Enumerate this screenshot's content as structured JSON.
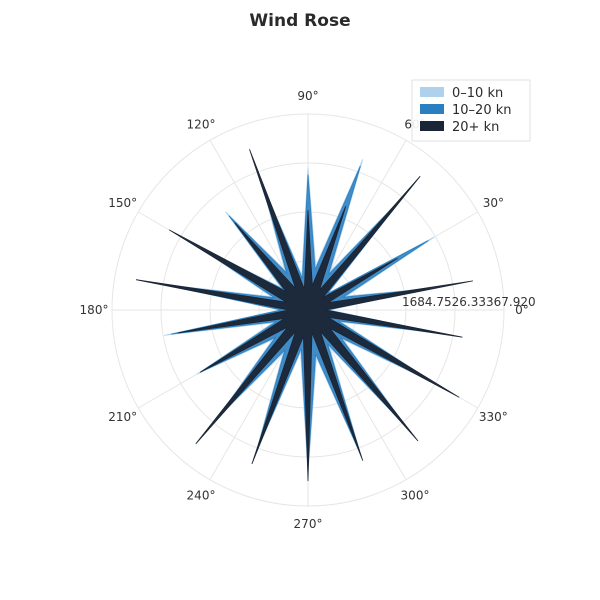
{
  "chart_data": {
    "type": "area",
    "title": "Wind Rose",
    "angular_unit": "degrees",
    "angular_ticks": [
      "0°",
      "30°",
      "60°",
      "90°",
      "120°",
      "150°",
      "180°",
      "210°",
      "240°",
      "270°",
      "300°",
      "330°"
    ],
    "radial_ticks": [
      "1684.75",
      "26.33",
      "367.92",
      "0"
    ],
    "radial_range": [
      0,
      1100
    ],
    "grid": true,
    "legend_position": "top-right",
    "directions": [
      0,
      10,
      20,
      30,
      40,
      50,
      60,
      70,
      80,
      90,
      100,
      110,
      120,
      130,
      140,
      150,
      160,
      170,
      180,
      190,
      200,
      210,
      220,
      230,
      240,
      250,
      260,
      270,
      280,
      290,
      300,
      310,
      320,
      330,
      340,
      350
    ],
    "series": [
      {
        "name": "0–10 kn",
        "color": "#aed1ec",
        "values": [
          120,
          700,
          230,
          820,
          150,
          850,
          250,
          900,
          250,
          800,
          200,
          760,
          260,
          720,
          200,
          720,
          220,
          840,
          160,
          820,
          210,
          720,
          260,
          800,
          280,
          860,
          240,
          920,
          270,
          880,
          240,
          860,
          260,
          820,
          200,
          760
        ]
      },
      {
        "name": "10–20 kn",
        "color": "#2b7fbf",
        "values": [
          110,
          680,
          210,
          780,
          140,
          820,
          230,
          860,
          230,
          760,
          180,
          720,
          240,
          690,
          180,
          690,
          200,
          800,
          150,
          780,
          190,
          690,
          240,
          770,
          260,
          830,
          220,
          890,
          250,
          850,
          220,
          830,
          240,
          790,
          180,
          730
        ]
      },
      {
        "name": "20+ kn",
        "color": "#1a2535",
        "values": [
          100,
          940,
          120,
          580,
          110,
          980,
          130,
          620,
          140,
          560,
          120,
          960,
          140,
          640,
          160,
          900,
          130,
          980,
          110,
          740,
          140,
          700,
          150,
          980,
          140,
          920,
          150,
          960,
          130,
          900,
          140,
          960,
          160,
          980,
          120,
          880
        ]
      }
    ]
  }
}
